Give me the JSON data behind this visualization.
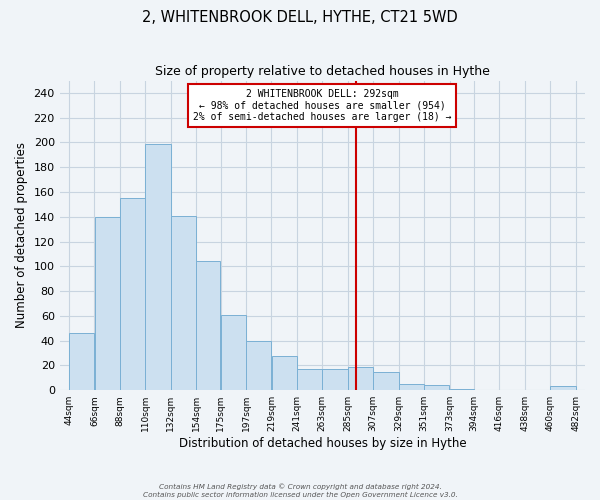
{
  "title": "2, WHITENBROOK DELL, HYTHE, CT21 5WD",
  "subtitle": "Size of property relative to detached houses in Hythe",
  "xlabel": "Distribution of detached houses by size in Hythe",
  "ylabel": "Number of detached properties",
  "bar_color": "#cce0f0",
  "bar_edge_color": "#7ab0d4",
  "grid_color": "#c8d4e0",
  "background_color": "#f0f4f8",
  "vline_x": 292,
  "vline_color": "#cc0000",
  "annotation_text": "2 WHITENBROOK DELL: 292sqm\n← 98% of detached houses are smaller (954)\n2% of semi-detached houses are larger (18) →",
  "annotation_box_color": "#ffffff",
  "annotation_edge_color": "#cc0000",
  "bin_edges": [
    44,
    66,
    88,
    110,
    132,
    154,
    175,
    197,
    219,
    241,
    263,
    285,
    307,
    329,
    351,
    373,
    394,
    416,
    438,
    460,
    482
  ],
  "bin_values": [
    46,
    140,
    155,
    199,
    141,
    104,
    61,
    40,
    28,
    17,
    17,
    19,
    15,
    5,
    4,
    1,
    0,
    0,
    0,
    3
  ],
  "ylim": [
    0,
    250
  ],
  "yticks": [
    0,
    20,
    40,
    60,
    80,
    100,
    120,
    140,
    160,
    180,
    200,
    220,
    240
  ],
  "footer_line1": "Contains HM Land Registry data © Crown copyright and database right 2024.",
  "footer_line2": "Contains public sector information licensed under the Open Government Licence v3.0."
}
